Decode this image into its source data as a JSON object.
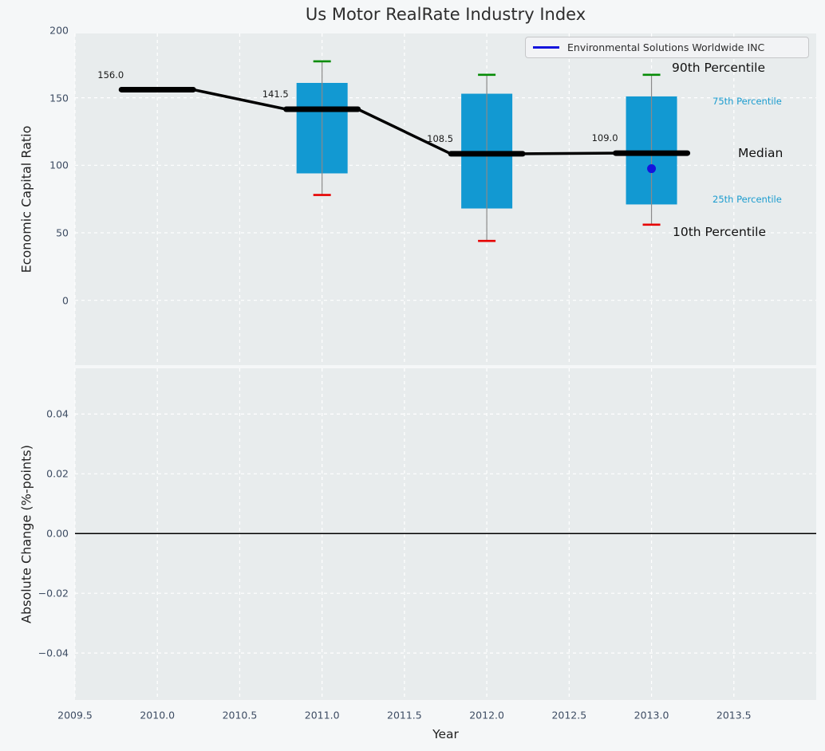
{
  "figure": {
    "title": "Us Motor RealRate Industry Index"
  },
  "chart_data": [
    {
      "type": "box",
      "title": "Us Motor RealRate Industry Index",
      "xlabel": "",
      "ylabel": "Economic Capital Ratio",
      "ylim": [
        -48,
        197.6
      ],
      "xlim": [
        2009.5,
        2014.0
      ],
      "grid": true,
      "legend_position": "upper right",
      "yticks": [
        {
          "v": 200,
          "label": "200"
        },
        {
          "v": 150,
          "label": "150"
        },
        {
          "v": 100,
          "label": "100"
        },
        {
          "v": 50,
          "label": "50"
        },
        {
          "v": 0,
          "label": "0"
        }
      ],
      "boxes": [
        {
          "x": 2010,
          "median": 156.0,
          "median_label": "156.0"
        },
        {
          "x": 2011,
          "median": 141.5,
          "median_label": "141.5",
          "q25": 94,
          "q75": 161,
          "p10": 78,
          "p90": 177
        },
        {
          "x": 2012,
          "median": 108.5,
          "median_label": "108.5",
          "q25": 68,
          "q75": 153,
          "p10": 44,
          "p90": 167
        },
        {
          "x": 2013,
          "median": 109.0,
          "median_label": "109.0",
          "q25": 71,
          "q75": 151,
          "p10": 56,
          "p90": 167
        }
      ],
      "series": [
        {
          "name": "Environmental Solutions Worldwide INC",
          "type": "scatter",
          "points": [
            {
              "x": 2013,
              "y": 97.5
            }
          ]
        }
      ],
      "feature_labels": [
        {
          "text": "90th Percentile",
          "size": "large"
        },
        {
          "text": "75th Percentile",
          "size": "small"
        },
        {
          "text": "Median",
          "size": "large"
        },
        {
          "text": "25th Percentile",
          "size": "small"
        },
        {
          "text": "10th Percentile",
          "size": "large"
        }
      ],
      "legend": {
        "entries": [
          {
            "label": "Environmental Solutions Worldwide INC",
            "color": "#1414dd"
          }
        ]
      }
    },
    {
      "type": "line",
      "xlabel": "Year",
      "ylabel": "Absolute Change (%-points)",
      "ylim": [
        -0.0557,
        0.0553
      ],
      "xlim": [
        2009.5,
        2014.0
      ],
      "grid": true,
      "zero_line": true,
      "yticks": [
        {
          "v": 0.04,
          "label": "0.04"
        },
        {
          "v": 0.02,
          "label": "0.02"
        },
        {
          "v": 0,
          "label": "0.00"
        },
        {
          "v": -0.02,
          "label": "−0.02"
        },
        {
          "v": -0.04,
          "label": "−0.04"
        }
      ],
      "xticks": [
        {
          "v": 2009.5,
          "label": "2009.5"
        },
        {
          "v": 2010.0,
          "label": "2010.0"
        },
        {
          "v": 2010.5,
          "label": "2010.5"
        },
        {
          "v": 2011.0,
          "label": "2011.0"
        },
        {
          "v": 2011.5,
          "label": "2011.5"
        },
        {
          "v": 2012.0,
          "label": "2012.0"
        },
        {
          "v": 2012.5,
          "label": "2012.5"
        },
        {
          "v": 2013.0,
          "label": "2013.0"
        },
        {
          "v": 2013.5,
          "label": "2013.5"
        }
      ],
      "series": []
    }
  ],
  "colors": {
    "figure_bg": "#f5f7f8",
    "axes_bg": "#e8eced",
    "grid": "#ffffff",
    "box_fill": "#1299d2",
    "whisker": "#8a8a8a",
    "cap_top_90th": "#068c06",
    "cap_bottom_10th": "#e60000",
    "median_line": "#000000",
    "company": "#1414dd",
    "tick_label": "#3d4c63",
    "small_percentile_label": "#1b9ccf",
    "annotation": "#1a1a1a",
    "zero_line": "#000000",
    "legend_border": "#c6c7c9",
    "legend_bg": "#f2f3f5",
    "title_text": "#2d2d2d",
    "axis_label_text": "#222222"
  }
}
